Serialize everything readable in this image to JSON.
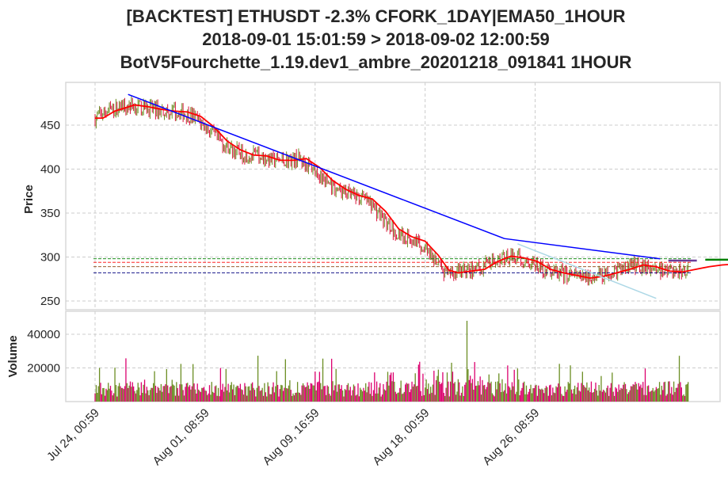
{
  "title_lines": [
    "[BACKTEST] ETHUSDT -2.3% CFORK_1DAY|EMA50_1HOUR",
    "2018-09-01 15:01:59 > 2018-09-02 12:00:59",
    "BotV5Fourchette_1.19.dev1_ambre_20201218_091841 1HOUR"
  ],
  "chart_data": [
    {
      "type": "line",
      "name": "price-panel",
      "ylabel": "Price",
      "ylim": [
        240,
        495
      ],
      "yticks": [
        250,
        300,
        350,
        400,
        450
      ],
      "grid": true,
      "x_range_days": [
        0,
        39.5
      ],
      "series": [
        {
          "role": "ema",
          "color": "#ff0000",
          "points": [
            [
              0,
              458
            ],
            [
              0.6,
              458
            ],
            [
              1.5,
              466
            ],
            [
              3,
              473
            ],
            [
              4,
              471
            ],
            [
              5,
              468
            ],
            [
              6,
              466
            ],
            [
              7,
              465
            ],
            [
              8,
              460
            ],
            [
              9,
              448
            ],
            [
              10,
              432
            ],
            [
              11,
              422
            ],
            [
              12,
              416
            ],
            [
              13,
              415
            ],
            [
              14,
              410
            ],
            [
              15,
              410
            ],
            [
              16,
              412
            ],
            [
              17,
              402
            ],
            [
              18,
              387
            ],
            [
              19,
              377
            ],
            [
              20,
              370
            ],
            [
              21,
              366
            ],
            [
              22,
              352
            ],
            [
              23,
              332
            ],
            [
              24,
              323
            ],
            [
              25,
              318
            ],
            [
              26,
              302
            ],
            [
              26.8,
              285
            ],
            [
              27.5,
              282
            ],
            [
              28.5,
              284
            ],
            [
              29.5,
              286
            ],
            [
              30.5,
              295
            ],
            [
              31.5,
              301
            ],
            [
              32.5,
              299
            ],
            [
              33.5,
              295
            ],
            [
              34.5,
              286
            ],
            [
              35.5,
              282
            ],
            [
              36.5,
              279
            ],
            [
              37.5,
              276
            ],
            [
              38.5,
              278
            ],
            [
              39.5,
              282
            ],
            [
              40.5,
              286
            ],
            [
              41.5,
              291
            ],
            [
              42.5,
              289
            ],
            [
              43.5,
              284
            ],
            [
              44.5,
              283
            ],
            [
              45.5,
              286
            ],
            [
              46.5,
              289
            ],
            [
              47.5,
              291
            ],
            [
              48.5,
              292
            ],
            [
              49.5,
              290
            ]
          ]
        },
        {
          "role": "upper-trendline",
          "color": "#0000ff",
          "points": [
            [
              2.5,
              485
            ],
            [
              31,
              321
            ],
            [
              42.8,
              298
            ]
          ]
        },
        {
          "role": "lower-trendline",
          "color": "#add8e6",
          "points": [
            [
              32,
              315
            ],
            [
              42.5,
              253
            ]
          ]
        }
      ],
      "hlines": [
        {
          "value": 298,
          "color": "#008000"
        },
        {
          "value": 294,
          "color": "#ff0000"
        },
        {
          "value": 289,
          "color": "#8b4513"
        },
        {
          "value": 282,
          "color": "#000080"
        }
      ],
      "markers": [
        {
          "x": 44.5,
          "y": 296,
          "color": "#6a3d9a"
        },
        {
          "x": 47.3,
          "y": 297,
          "color": "#008000"
        }
      ],
      "candle_colors": {
        "up": "#6b8e23",
        "down": "#dc143c"
      }
    },
    {
      "type": "bar",
      "name": "volume-panel",
      "ylabel": "Volume",
      "ylim": [
        0,
        50000
      ],
      "yticks": [
        20000,
        40000
      ],
      "grid": true,
      "colors": {
        "up": "#6b8e23",
        "down": "#dc006e"
      }
    }
  ],
  "xaxis": {
    "tick_labels": [
      "Jul 24, 00:59",
      "Aug 01, 08:59",
      "Aug 09, 16:59",
      "Aug 18, 00:59",
      "Aug 26, 08:59"
    ],
    "tick_days": [
      0,
      8.333,
      16.667,
      25,
      33.333
    ]
  }
}
